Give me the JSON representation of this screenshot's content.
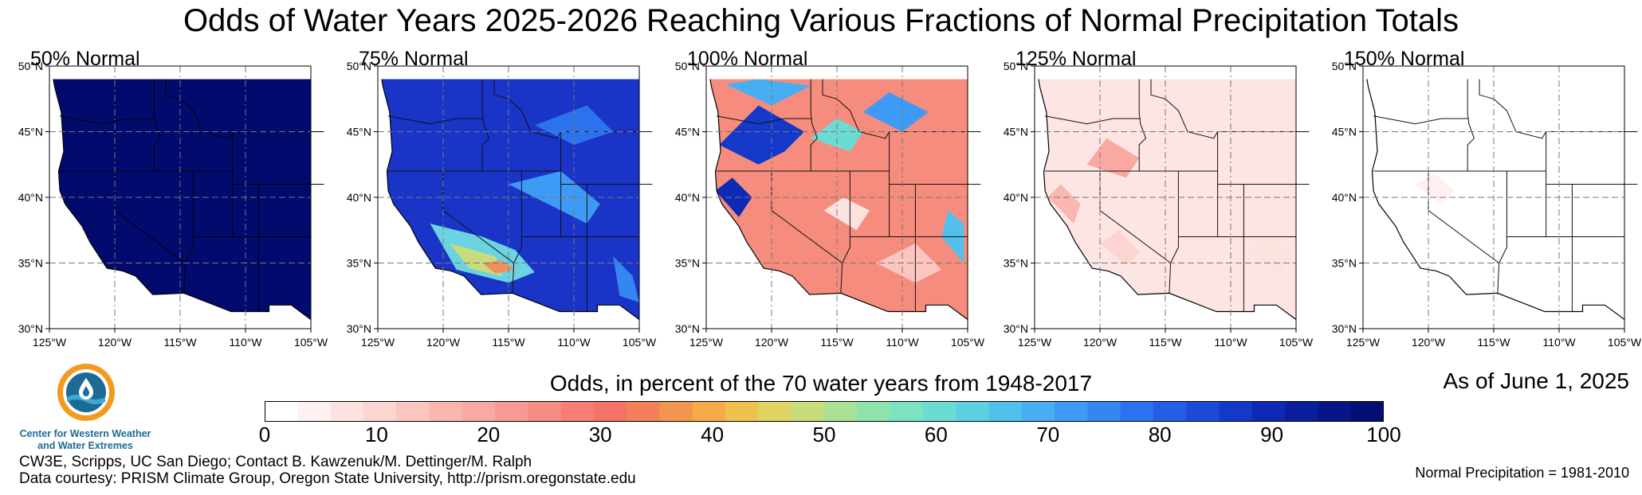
{
  "title": "Odds of Water Years 2025-2026 Reaching Various Fractions of Normal Precipitation Totals",
  "panels": [
    {
      "label": "50% Normal",
      "fill": "#020a6e",
      "shade": "dark"
    },
    {
      "label": "75% Normal",
      "fill": "#1a34c8",
      "shade": "blue"
    },
    {
      "label": "100% Normal",
      "fill": "#f58c7e",
      "shade": "mixed"
    },
    {
      "label": "125% Normal",
      "fill": "#fde5e3",
      "shade": "pale"
    },
    {
      "label": "150% Normal",
      "fill": "#ffffff",
      "shade": "white"
    }
  ],
  "map_axes": {
    "lat_labels": [
      "50°N",
      "45°N",
      "40°N",
      "35°N",
      "30°N"
    ],
    "lon_labels": [
      "125°W",
      "120°W",
      "115°W",
      "110°W",
      "105°W"
    ],
    "lat_range": [
      30,
      50
    ],
    "lon_range": [
      -125,
      -105
    ]
  },
  "colorbar": {
    "title": "Odds, in percent of the 70 water years from 1948-2017",
    "labels": [
      "0",
      "10",
      "20",
      "30",
      "40",
      "50",
      "60",
      "70",
      "80",
      "90",
      "100"
    ],
    "colors": [
      "#ffffff",
      "#fef1f0",
      "#fde3e0",
      "#fcd4d0",
      "#fbc6c0",
      "#fab7b0",
      "#f9a9a1",
      "#f89a92",
      "#f78c83",
      "#f67e74",
      "#f47266",
      "#f3805a",
      "#f4954f",
      "#f5ab4a",
      "#efc250",
      "#e2d365",
      "#c8dc7c",
      "#a9e195",
      "#8ee3ac",
      "#7be3c1",
      "#6cdcd3",
      "#5fd0e2",
      "#53c0ec",
      "#48aef3",
      "#3d9bf5",
      "#3487f3",
      "#2b72ee",
      "#235ee5",
      "#1b4bd8",
      "#1439c8",
      "#0e2ab4",
      "#0a1f9e",
      "#061688",
      "#030f76"
    ]
  },
  "as_of": "As of June 1, 2025",
  "normal_precip": "Normal Precipitation = 1981-2010",
  "credits": [
    "CW3E, Scripps, UC San Diego; Contact B. Kawzenuk/M. Dettinger/M. Ralph",
    "Data courtesy: PRISM Climate Group, Oregon State University, http://prism.oregonstate.edu"
  ],
  "logo": {
    "icon": "cw3e-water-drop-logo",
    "caption_line1": "Center for Western Weather",
    "caption_line2": "and Water Extremes",
    "colors": {
      "orange": "#f39a1e",
      "blue": "#1b6b95",
      "light_blue": "#3fa9d6"
    }
  }
}
